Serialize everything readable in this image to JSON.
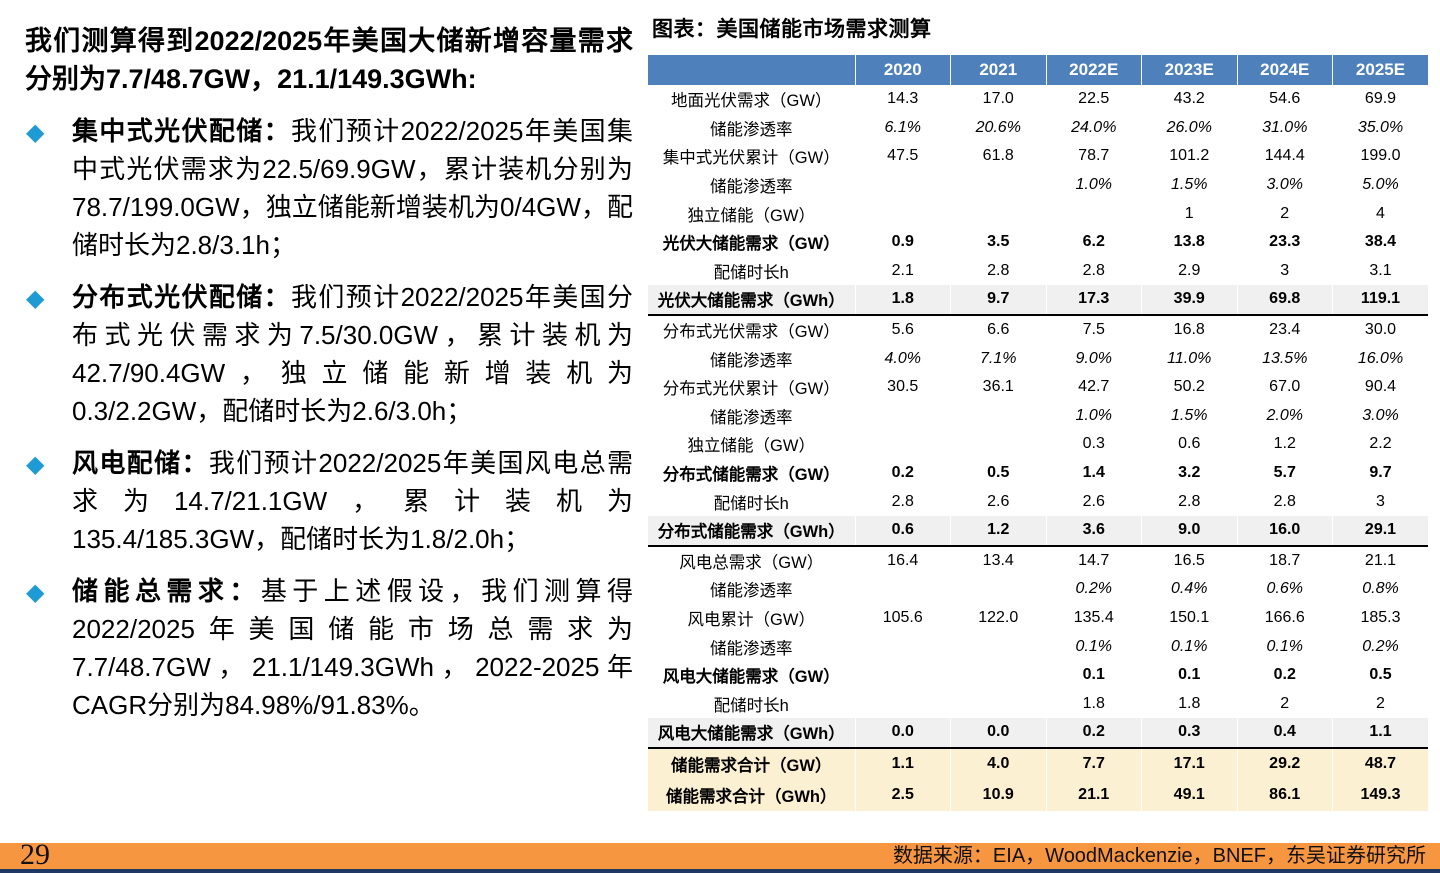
{
  "theme": {
    "header-blue": "#4E80BC",
    "sum-gray": "#F0F0F0",
    "total-cream": "#FCF0D2",
    "footer-orange": "#F79641",
    "strip-navy": "#203864",
    "accent-azure": "#1E9BD4"
  },
  "left_panel": {
    "headline": "我们测算得到2022/2025年美国大储新增容量需求分别为7.7/48.7GW，21.1/149.3GWh:",
    "bullet_glyph": "◆",
    "bullets": [
      {
        "title": "集中式光伏配储：",
        "text": "我们预计2022/2025年美国集中式光伏需求为22.5/69.9GW，累计装机分别为78.7/199.0GW，独立储能新增装机为0/4GW，配储时长为2.8/3.1h；"
      },
      {
        "title": "分布式光伏配储：",
        "text": "我们预计2022/2025年美国分布式光伏需求为7.5/30.0GW，累计装机为42.7/90.4GW，独立储能新增装机为0.3/2.2GW，配储时长为2.6/3.0h；"
      },
      {
        "title": "风电配储：",
        "text": "我们预计2022/2025年美国风电总需求为14.7/21.1GW，累计装机为135.4/185.3GW，配储时长为1.8/2.0h；"
      },
      {
        "title": "储能总需求：",
        "text": "基于上述假设，我们测算得2022/2025年美国储能市场总需求为7.7/48.7GW，21.1/149.3GWh，2022-2025年CAGR分别为84.98%/91.83%。"
      }
    ]
  },
  "chart_data": {
    "type": "table",
    "title": "图表：美国储能市场需求测算",
    "columns": [
      "",
      "2020",
      "2021",
      "2022E",
      "2023E",
      "2024E",
      "2025E"
    ],
    "rows": [
      {
        "label": "地面光伏需求（GW）",
        "style": "plain",
        "values": [
          "14.3",
          "17.0",
          "22.5",
          "43.2",
          "54.6",
          "69.9"
        ]
      },
      {
        "label": "储能渗透率",
        "style": "italic",
        "values": [
          "6.1%",
          "20.6%",
          "24.0%",
          "26.0%",
          "31.0%",
          "35.0%"
        ]
      },
      {
        "label": "集中式光伏累计（GW）",
        "style": "plain",
        "values": [
          "47.5",
          "61.8",
          "78.7",
          "101.2",
          "144.4",
          "199.0"
        ]
      },
      {
        "label": "储能渗透率",
        "style": "italic",
        "values": [
          "",
          "",
          "1.0%",
          "1.5%",
          "3.0%",
          "5.0%"
        ]
      },
      {
        "label": "独立储能（GW）",
        "style": "plain",
        "values": [
          "",
          "",
          "",
          "1",
          "2",
          "4"
        ]
      },
      {
        "label": "光伏大储能需求（GW）",
        "style": "bold",
        "values": [
          "0.9",
          "3.5",
          "6.2",
          "13.8",
          "23.3",
          "38.4"
        ]
      },
      {
        "label": "配储时长h",
        "style": "plain",
        "values": [
          "2.1",
          "2.8",
          "2.8",
          "2.9",
          "3",
          "3.1"
        ]
      },
      {
        "label": "光伏大储能需求（GWh）",
        "style": "sum",
        "values": [
          "1.8",
          "9.7",
          "17.3",
          "39.9",
          "69.8",
          "119.1"
        ]
      },
      {
        "label": "分布式光伏需求（GW）",
        "style": "plain",
        "values": [
          "5.6",
          "6.6",
          "7.5",
          "16.8",
          "23.4",
          "30.0"
        ]
      },
      {
        "label": "储能渗透率",
        "style": "italic",
        "values": [
          "4.0%",
          "7.1%",
          "9.0%",
          "11.0%",
          "13.5%",
          "16.0%"
        ]
      },
      {
        "label": "分布式光伏累计（GW）",
        "style": "plain",
        "values": [
          "30.5",
          "36.1",
          "42.7",
          "50.2",
          "67.0",
          "90.4"
        ]
      },
      {
        "label": "储能渗透率",
        "style": "italic",
        "values": [
          "",
          "",
          "1.0%",
          "1.5%",
          "2.0%",
          "3.0%"
        ]
      },
      {
        "label": "独立储能（GW）",
        "style": "plain",
        "values": [
          "",
          "",
          "0.3",
          "0.6",
          "1.2",
          "2.2"
        ]
      },
      {
        "label": "分布式储能需求（GW）",
        "style": "bold",
        "values": [
          "0.2",
          "0.5",
          "1.4",
          "3.2",
          "5.7",
          "9.7"
        ]
      },
      {
        "label": "配储时长h",
        "style": "plain",
        "values": [
          "2.8",
          "2.6",
          "2.6",
          "2.8",
          "2.8",
          "3"
        ]
      },
      {
        "label": "分布式储能需求（GWh）",
        "style": "sum",
        "values": [
          "0.6",
          "1.2",
          "3.6",
          "9.0",
          "16.0",
          "29.1"
        ]
      },
      {
        "label": "风电总需求（GW）",
        "style": "plain",
        "values": [
          "16.4",
          "13.4",
          "14.7",
          "16.5",
          "18.7",
          "21.1"
        ]
      },
      {
        "label": "储能渗透率",
        "style": "italic",
        "values": [
          "",
          "",
          "0.2%",
          "0.4%",
          "0.6%",
          "0.8%"
        ]
      },
      {
        "label": "风电累计（GW）",
        "style": "plain",
        "values": [
          "105.6",
          "122.0",
          "135.4",
          "150.1",
          "166.6",
          "185.3"
        ]
      },
      {
        "label": "储能渗透率",
        "style": "italic",
        "values": [
          "",
          "",
          "0.1%",
          "0.1%",
          "0.1%",
          "0.2%"
        ]
      },
      {
        "label": "风电大储能需求（GW）",
        "style": "bold",
        "values": [
          "",
          "",
          "0.1",
          "0.1",
          "0.2",
          "0.5"
        ]
      },
      {
        "label": "配储时长h",
        "style": "plain",
        "values": [
          "",
          "",
          "1.8",
          "1.8",
          "2",
          "2"
        ]
      },
      {
        "label": "风电大储能需求（GWh）",
        "style": "sum",
        "values": [
          "0.0",
          "0.0",
          "0.2",
          "0.3",
          "0.4",
          "1.1"
        ]
      },
      {
        "label": "储能需求合计（GW）",
        "style": "total",
        "values": [
          "1.1",
          "4.0",
          "7.7",
          "17.1",
          "29.2",
          "48.7"
        ]
      },
      {
        "label": "储能需求合计（GWh）",
        "style": "total",
        "values": [
          "2.5",
          "10.9",
          "21.1",
          "49.1",
          "86.1",
          "149.3"
        ]
      }
    ]
  },
  "footer": {
    "page_number": "29",
    "source": "数据来源：EIA，WoodMackenzie，BNEF，东吴证券研究所"
  }
}
